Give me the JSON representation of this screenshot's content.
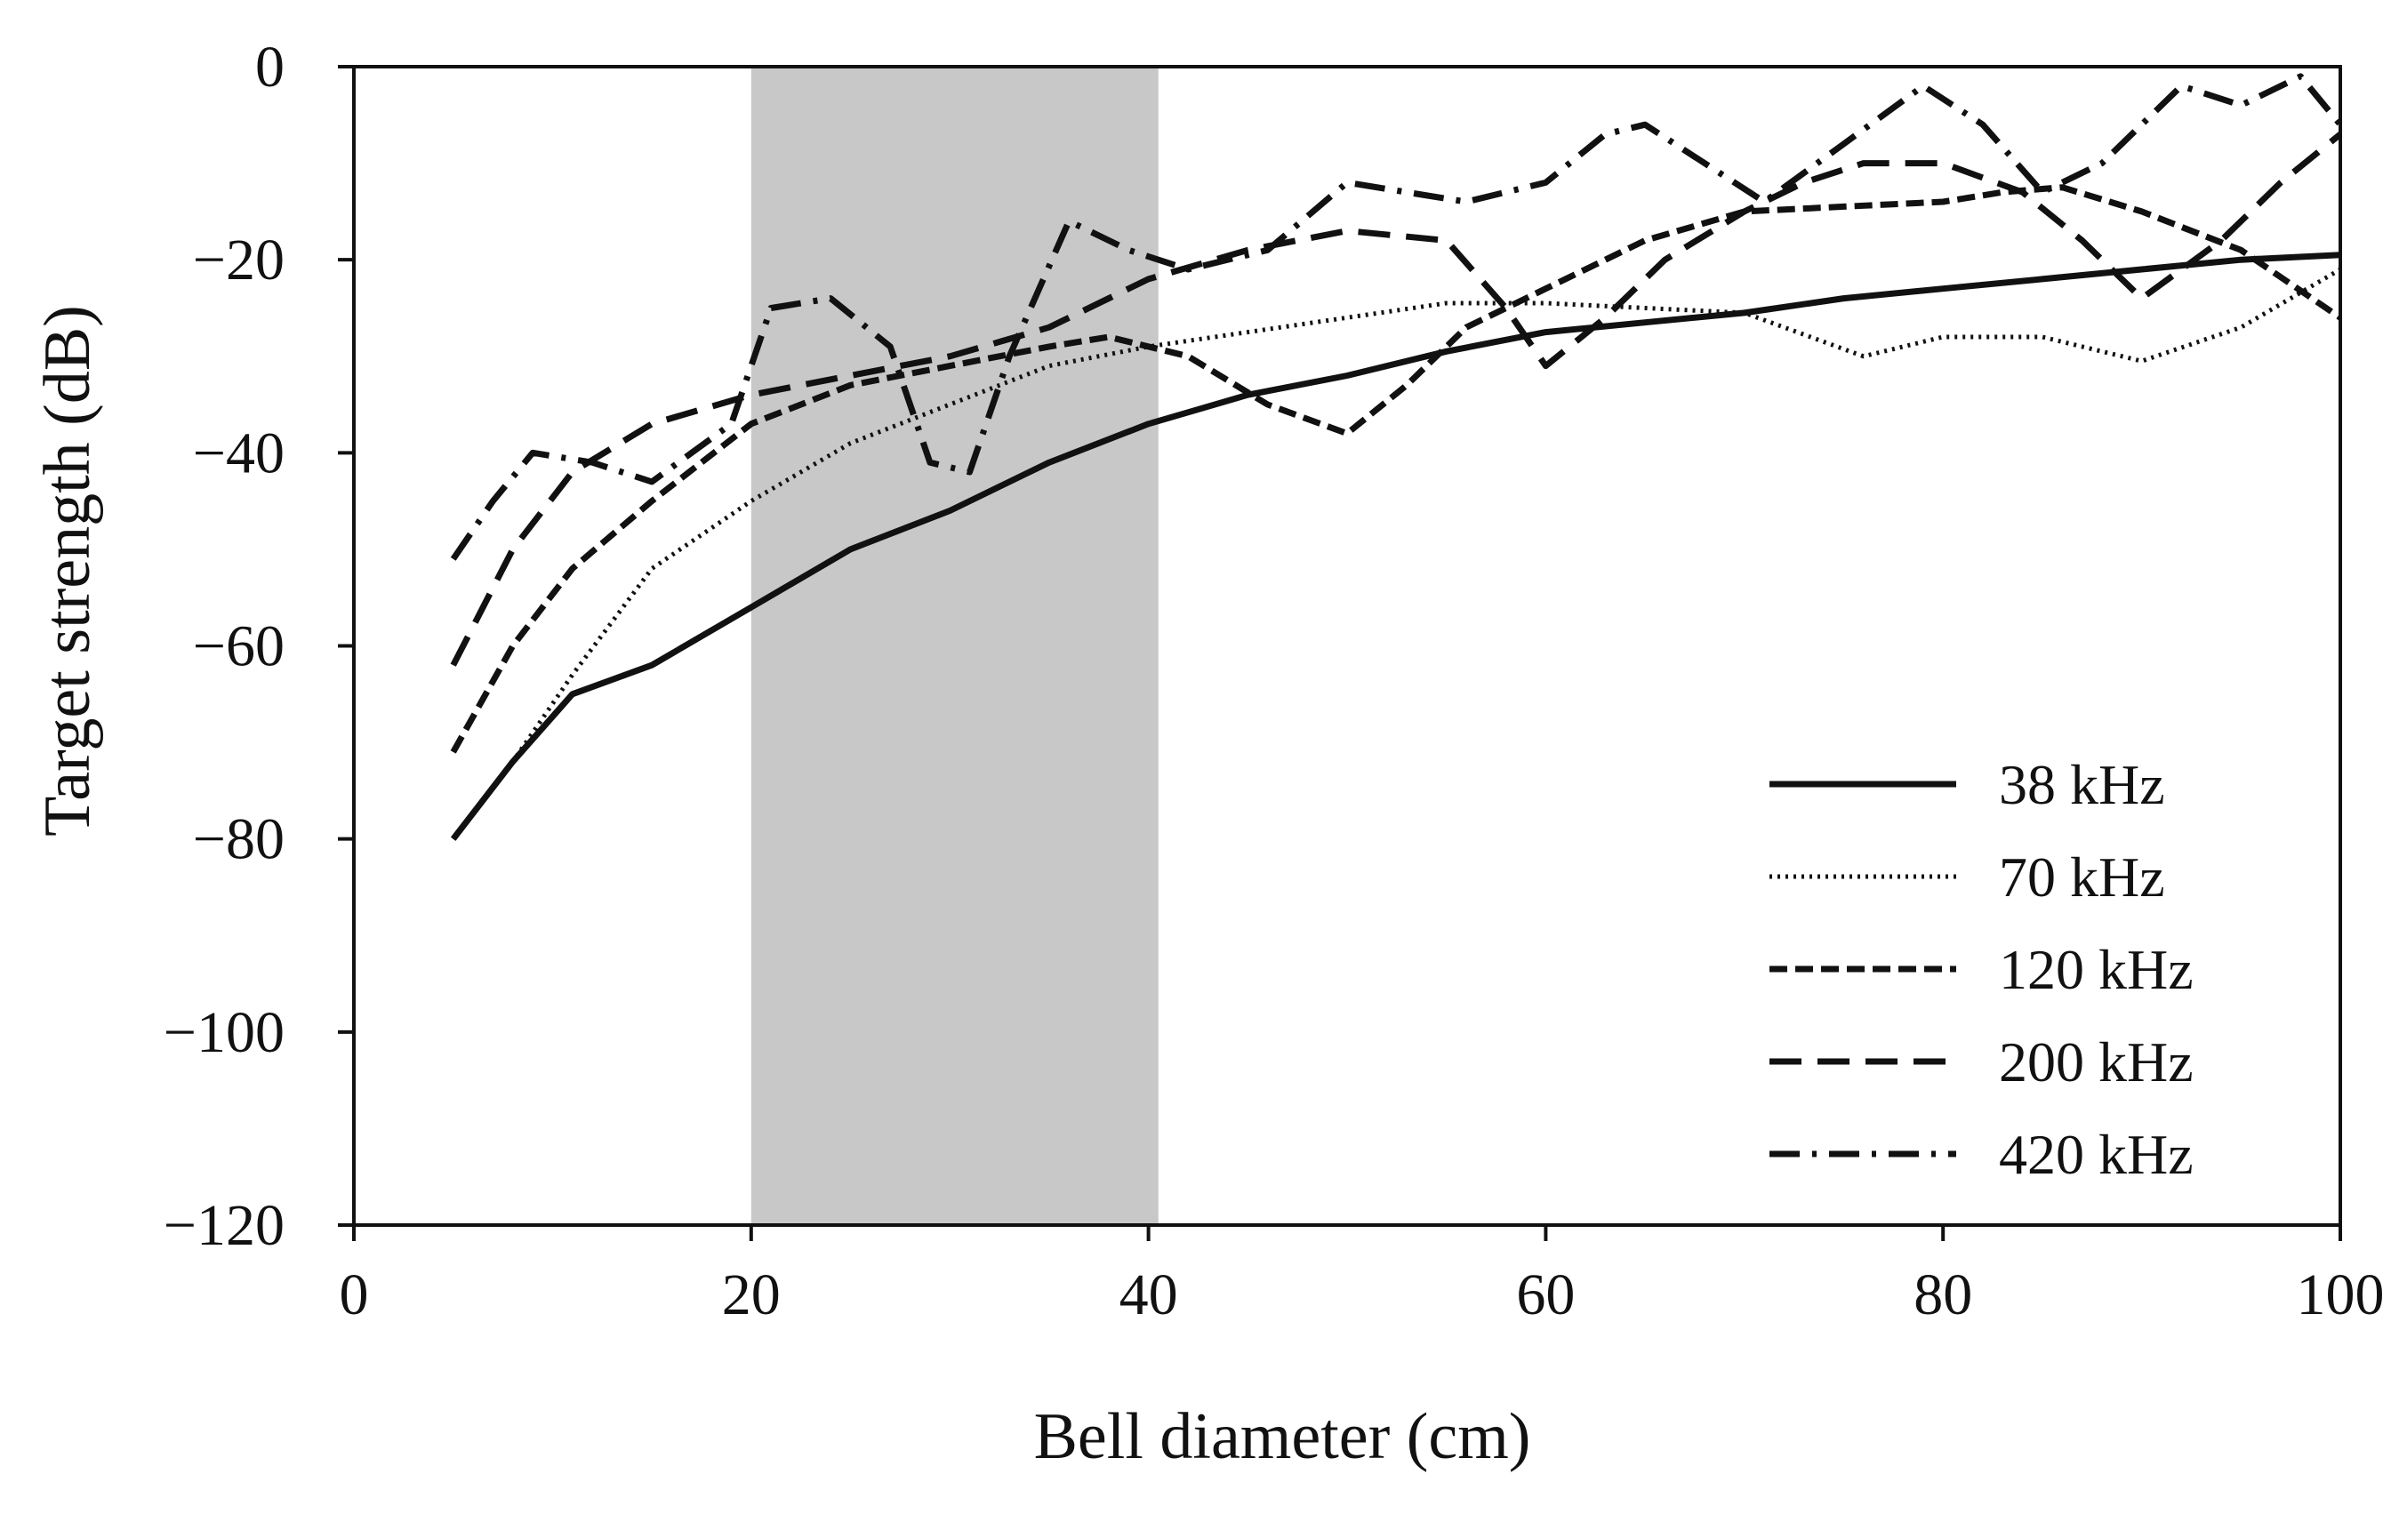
{
  "chart_data": {
    "type": "line",
    "title": "",
    "xlabel": "Bell diameter (cm)",
    "ylabel": "Target strength (dB)",
    "xlim": [
      0,
      100
    ],
    "ylim": [
      -120,
      0
    ],
    "xticks": [
      0,
      20,
      40,
      60,
      80,
      100
    ],
    "xtick_labels": [
      "0",
      "20",
      "40",
      "60",
      "80",
      "100"
    ],
    "yticks": [
      0,
      -20,
      -40,
      -60,
      -80,
      -100,
      -120
    ],
    "ytick_labels": [
      "0",
      "−20",
      "−40",
      "−60",
      "−80",
      "−100",
      "−120"
    ],
    "shaded_region": {
      "x_from": 20,
      "x_to": 40.5,
      "color": "#c8c8c8"
    },
    "grid": false,
    "legend_position": "bottom-right",
    "series": [
      {
        "name": "38 kHz",
        "dash": "solid",
        "x": [
          5,
          8,
          11,
          15,
          20,
          25,
          30,
          35,
          40,
          45,
          50,
          55,
          60,
          65,
          70,
          75,
          80,
          85,
          90,
          95,
          100
        ],
        "values": [
          -80,
          -72,
          -65,
          -62,
          -56,
          -50,
          -46,
          -41,
          -37,
          -34,
          -32,
          -29.5,
          -27.5,
          -26.5,
          -25.5,
          -24,
          -23,
          -22,
          -21,
          -20,
          -19.5
        ]
      },
      {
        "name": "70 kHz",
        "dash": "dotted",
        "x": [
          5,
          8,
          11,
          15,
          20,
          25,
          30,
          35,
          40,
          45,
          50,
          55,
          60,
          65,
          70,
          72,
          76,
          80,
          85,
          90,
          95,
          100
        ],
        "values": [
          -80,
          -72,
          -63,
          -52,
          -45,
          -39,
          -35,
          -31,
          -29,
          -27.5,
          -26,
          -24.5,
          -24.5,
          -25,
          -25.5,
          -27,
          -30,
          -28,
          -28,
          -30.5,
          -27,
          -21
        ]
      },
      {
        "name": "120 kHz",
        "dash": "short-dash",
        "x": [
          5,
          8,
          11,
          15,
          20,
          25,
          30,
          35,
          38,
          42,
          46,
          50,
          53,
          56,
          60,
          65,
          70,
          75,
          80,
          83,
          86,
          90,
          95,
          100
        ],
        "values": [
          -71,
          -60,
          -52,
          -45,
          -37,
          -33,
          -31,
          -29,
          -28,
          -30,
          -35,
          -38,
          -33,
          -27,
          -23,
          -18,
          -15,
          -14.5,
          -14,
          -13,
          -12.5,
          -15,
          -19,
          -26
        ]
      },
      {
        "name": "200 kHz",
        "dash": "long-dash",
        "x": [
          5,
          8,
          11,
          15,
          20,
          25,
          30,
          35,
          40,
          45,
          50,
          55,
          58,
          60,
          63,
          66,
          70,
          73,
          76,
          80,
          84,
          87,
          90,
          94,
          97,
          100
        ],
        "values": [
          -62,
          -50,
          -42,
          -37,
          -34,
          -32,
          -30,
          -27,
          -22,
          -19,
          -17,
          -18,
          -25,
          -31,
          -26,
          -20,
          -15,
          -12,
          -10,
          -10,
          -13,
          -18,
          -24,
          -18,
          -12,
          -7
        ]
      },
      {
        "name": "420 kHz",
        "dash": "dash-dot",
        "x": [
          5,
          7,
          9,
          12,
          15,
          19,
          21,
          24,
          27,
          29,
          31,
          33,
          36,
          39,
          42,
          46,
          50,
          53,
          56,
          60,
          63,
          65,
          68,
          71,
          75,
          79,
          82,
          85,
          88,
          92,
          95,
          98,
          100
        ],
        "values": [
          -51,
          -45,
          -40,
          -41,
          -43,
          -37,
          -25,
          -24,
          -29,
          -41,
          -42,
          -30,
          -16,
          -19,
          -21,
          -19,
          -12,
          -13,
          -14,
          -12,
          -7,
          -6,
          -10,
          -14,
          -8,
          -2,
          -6,
          -13,
          -10,
          -2,
          -4,
          -1,
          -6
        ]
      }
    ],
    "legend": [
      "38 kHz",
      "70 kHz",
      "120 kHz",
      "200 kHz",
      "420 kHz"
    ]
  }
}
